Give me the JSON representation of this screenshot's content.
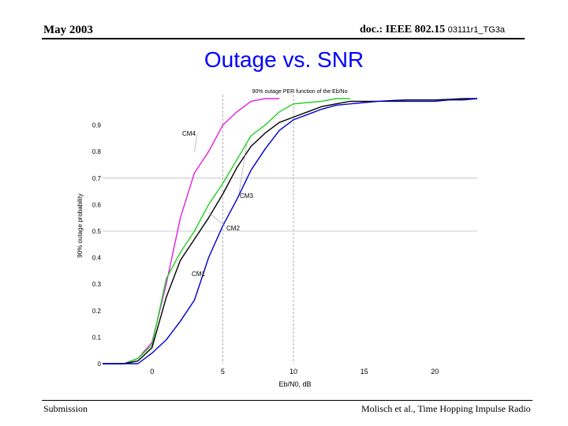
{
  "header": {
    "date": "May 2003",
    "doc_prefix": "doc.: IEEE 802.15 ",
    "doc_number": "03111r1_TG3a"
  },
  "slide": {
    "title": "Outage vs. SNR"
  },
  "footer": {
    "left": "Submission",
    "right": "Molisch et al., Time  Hopping Impulse Radio"
  },
  "chart_data": {
    "type": "line",
    "title": "90% outage PER function of the Eb/No",
    "xlabel": "Eb/N0, dB",
    "ylabel": "90% outage probability",
    "xlim": [
      -3.5,
      23
    ],
    "ylim": [
      0,
      1
    ],
    "xticks": [
      0,
      5,
      10,
      15,
      20
    ],
    "yticks": [
      0,
      0.1,
      0.2,
      0.3,
      0.4,
      0.5,
      0.6,
      0.7,
      0.8,
      0.9
    ],
    "grid_x": [
      5,
      10
    ],
    "grid_y": [
      0.5,
      0.7
    ],
    "series": [
      {
        "name": "CM4",
        "color": "#e020e0",
        "x": [
          -3.5,
          -2,
          -1,
          0,
          1,
          2,
          3,
          4,
          5,
          6,
          7,
          8,
          9
        ],
        "y": [
          0,
          0,
          0.02,
          0.08,
          0.3,
          0.55,
          0.72,
          0.8,
          0.9,
          0.95,
          0.99,
          1.0,
          1.0
        ]
      },
      {
        "name": "CM3",
        "color": "#20d020",
        "x": [
          -3.5,
          -2,
          -1,
          0,
          1,
          2,
          3,
          4,
          5,
          6,
          7,
          8,
          9,
          10,
          11,
          12,
          13,
          14
        ],
        "y": [
          0,
          0,
          0.02,
          0.07,
          0.32,
          0.42,
          0.5,
          0.6,
          0.68,
          0.77,
          0.86,
          0.9,
          0.95,
          0.98,
          0.985,
          0.99,
          1.0,
          1.0
        ]
      },
      {
        "name": "CM2",
        "color": "#000000",
        "x": [
          -3.5,
          -2,
          -1,
          0,
          1,
          2,
          3,
          4,
          5,
          6,
          7,
          8,
          9,
          10,
          11,
          12,
          13,
          14,
          15,
          16,
          17,
          18,
          19,
          20,
          21,
          22,
          23
        ],
        "y": [
          0,
          0,
          0.01,
          0.06,
          0.25,
          0.39,
          0.47,
          0.55,
          0.64,
          0.74,
          0.82,
          0.87,
          0.91,
          0.93,
          0.95,
          0.97,
          0.98,
          0.99,
          0.99,
          0.99,
          0.993,
          0.995,
          0.995,
          0.995,
          0.997,
          1.0,
          1.0
        ]
      },
      {
        "name": "CM1",
        "color": "#0000cc",
        "x": [
          -3.5,
          -2,
          -1,
          0,
          1,
          2,
          3,
          4,
          5,
          6,
          7,
          8,
          9,
          10,
          11,
          12,
          13,
          14,
          15,
          16,
          17,
          18,
          19,
          20,
          21,
          22,
          23
        ],
        "y": [
          0,
          0,
          0,
          0.04,
          0.09,
          0.16,
          0.24,
          0.4,
          0.52,
          0.62,
          0.73,
          0.81,
          0.88,
          0.92,
          0.94,
          0.96,
          0.975,
          0.98,
          0.985,
          0.99,
          0.99,
          0.99,
          0.99,
          0.99,
          0.995,
          0.995,
          1.0
        ]
      }
    ]
  }
}
